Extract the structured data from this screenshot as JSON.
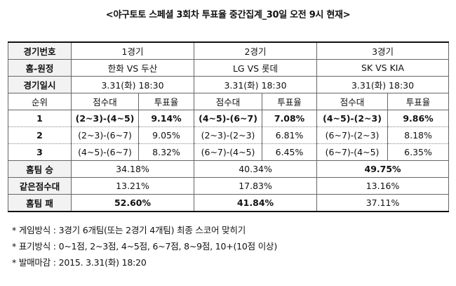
{
  "title": "<야구토토 스페셜 3회차 투표율 중간집계_30일 오전 9시 현재>",
  "table": {
    "row_game_no": {
      "label": "경기번호",
      "values": [
        "1경기",
        "2경기",
        "3경기"
      ]
    },
    "row_matchup": {
      "label": "홈-원정",
      "values": [
        "한화 VS 두산",
        "LG VS 롯데",
        "SK VS KIA"
      ]
    },
    "row_date": {
      "label": "경기일시",
      "values": [
        "3.31(화) 18:30",
        "3.31(화) 18:30",
        "3.31(화) 18:30"
      ]
    },
    "rank_header": {
      "label": "순위",
      "score_col": "점수대",
      "rate_col": "투표율"
    },
    "ranks": [
      {
        "rank": "1",
        "games": [
          {
            "score": "(2~3)-(4~5)",
            "rate": "9.14%"
          },
          {
            "score": "(4~5)-(6~7)",
            "rate": "7.08%"
          },
          {
            "score": "(4~5)-(2~3)",
            "rate": "9.86%"
          }
        ]
      },
      {
        "rank": "2",
        "games": [
          {
            "score": "(2~3)-(6~7)",
            "rate": "9.05%"
          },
          {
            "score": "(2~3)-(2~3)",
            "rate": "6.81%"
          },
          {
            "score": "(6~7)-(2~3)",
            "rate": "8.18%"
          }
        ]
      },
      {
        "rank": "3",
        "games": [
          {
            "score": "(4~5)-(6~7)",
            "rate": "8.32%"
          },
          {
            "score": "(6~7)-(4~5)",
            "rate": "6.45%"
          },
          {
            "score": "(6~7)-(4~5)",
            "rate": "6.35%"
          }
        ]
      }
    ],
    "row_home_win": {
      "label": "홈팀 승",
      "values": [
        "34.18%",
        "40.34%",
        "49.75%"
      ]
    },
    "row_draw": {
      "label": "같은점수대",
      "values": [
        "13.21%",
        "17.83%",
        "13.16%"
      ]
    },
    "row_home_loss": {
      "label": "홈팀 패",
      "values": [
        "52.60%",
        "41.84%",
        "37.11%"
      ]
    }
  },
  "notes": [
    "* 게임방식 : 3경기 6개팀(또는 2경기 4개팀) 최종 스코어 맞히기",
    "* 표기방식 : 0~1점, 2~3점, 4~5점, 6~7점, 8~9점, 10+(10점 이상)",
    "* 발매마감 : 2015. 3.31(화) 18:20"
  ]
}
